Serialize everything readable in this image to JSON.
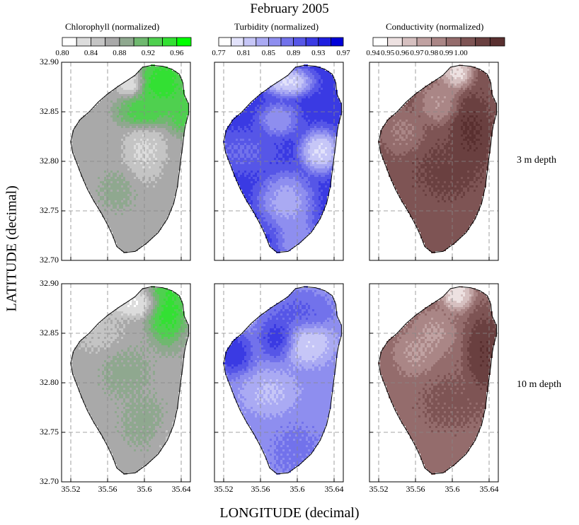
{
  "chart_data": {
    "type": "heatmap",
    "title": "February 2005",
    "xlabel": "LONGITUDE (decimal)",
    "ylabel": "LATITUDE (decimal)",
    "xlim": [
      35.51,
      35.65
    ],
    "ylim": [
      32.7,
      32.9
    ],
    "x_ticks": [
      "35.52",
      "35.56",
      "35.6",
      "35.64"
    ],
    "y_ticks": [
      "32.90",
      "32.85",
      "32.80",
      "32.75",
      "32.70"
    ],
    "grid": true,
    "rows": [
      {
        "label": "3 m depth"
      },
      {
        "label": "10 m depth"
      }
    ],
    "columns": [
      {
        "variable": "Chlorophyll (normalized)",
        "colorbar_ticks": [
          "0.80",
          "0.84",
          "0.88",
          "0.92",
          "0.96"
        ],
        "colors": [
          "#ffffff",
          "#dcdcdc",
          "#c4c4c4",
          "#a9a9a9",
          "#8fa88f",
          "#6fb86f",
          "#4fd04f",
          "#33e033",
          "#00ff00"
        ]
      },
      {
        "variable": "Turbidity (normalized)",
        "colorbar_ticks": [
          "0.77",
          "0.81",
          "0.85",
          "0.89",
          "0.93",
          "0.97"
        ],
        "colors": [
          "#ffffff",
          "#e2e2fb",
          "#c6c6f7",
          "#aaaaf3",
          "#8e8eef",
          "#7272eb",
          "#5656e7",
          "#3a3ae3",
          "#1e1edf",
          "#0000d8"
        ]
      },
      {
        "variable": "Conductivity (normalized)",
        "colorbar_ticks": [
          "0.94",
          "0.95",
          "0.96",
          "0.97",
          "0.98",
          "0.99",
          "1.00"
        ],
        "colors": [
          "#ffffff",
          "#ede1e1",
          "#d6c0c0",
          "#c0a2a2",
          "#aa8686",
          "#946c6c",
          "#7e5454",
          "#6a4040",
          "#5a3030"
        ]
      }
    ],
    "lake_outline_lonlat": [
      [
        35.59,
        32.887
      ],
      [
        35.598,
        32.895
      ],
      [
        35.608,
        32.897
      ],
      [
        35.62,
        32.896
      ],
      [
        35.63,
        32.893
      ],
      [
        35.638,
        32.888
      ],
      [
        35.642,
        32.879
      ],
      [
        35.643,
        32.868
      ],
      [
        35.648,
        32.858
      ],
      [
        35.648,
        32.848
      ],
      [
        35.645,
        32.838
      ],
      [
        35.643,
        32.828
      ],
      [
        35.642,
        32.818
      ],
      [
        35.64,
        32.805
      ],
      [
        35.638,
        32.79
      ],
      [
        35.636,
        32.775
      ],
      [
        35.632,
        32.758
      ],
      [
        35.625,
        32.742
      ],
      [
        35.615,
        32.728
      ],
      [
        35.602,
        32.717
      ],
      [
        35.59,
        32.709
      ],
      [
        35.578,
        32.708
      ],
      [
        35.57,
        32.714
      ],
      [
        35.566,
        32.724
      ],
      [
        35.56,
        32.736
      ],
      [
        35.553,
        32.748
      ],
      [
        35.545,
        32.76
      ],
      [
        35.538,
        32.772
      ],
      [
        35.532,
        32.785
      ],
      [
        35.527,
        32.797
      ],
      [
        35.522,
        32.809
      ],
      [
        35.52,
        32.82
      ],
      [
        35.523,
        32.832
      ],
      [
        35.53,
        32.842
      ],
      [
        35.54,
        32.85
      ],
      [
        35.55,
        32.86
      ],
      [
        35.56,
        32.868
      ],
      [
        35.572,
        32.876
      ],
      [
        35.582,
        32.882
      ]
    ],
    "fields": [
      [
        {
          "base": 3,
          "blobs": [
            [
              35.62,
              32.88,
              0.02,
              0.02,
              8
            ],
            [
              35.6,
              32.85,
              0.02,
              0.012,
              7
            ],
            [
              35.64,
              32.85,
              0.01,
              0.015,
              7
            ],
            [
              35.585,
              32.88,
              0.01,
              0.01,
              0
            ],
            [
              35.6,
              32.81,
              0.015,
              0.02,
              1
            ],
            [
              35.57,
              32.77,
              0.015,
              0.015,
              4
            ]
          ]
        },
        {
          "base": 7,
          "blobs": [
            [
              35.59,
              32.88,
              0.018,
              0.01,
              0
            ],
            [
              35.58,
              32.842,
              0.015,
              0.012,
              3
            ],
            [
              35.625,
              32.81,
              0.015,
              0.015,
              0
            ],
            [
              35.588,
              32.76,
              0.02,
              0.02,
              2
            ],
            [
              35.54,
              32.81,
              0.025,
              0.015,
              5
            ],
            [
              35.6,
              32.72,
              0.015,
              0.02,
              3
            ]
          ]
        },
        {
          "base": 6,
          "blobs": [
            [
              35.605,
              32.89,
              0.012,
              0.012,
              0
            ],
            [
              35.585,
              32.86,
              0.015,
              0.015,
              3
            ],
            [
              35.545,
              32.83,
              0.015,
              0.015,
              4
            ],
            [
              35.595,
              32.79,
              0.025,
              0.02,
              7
            ],
            [
              35.62,
              32.83,
              0.015,
              0.025,
              8
            ]
          ]
        }
      ],
      [
        {
          "base": 3,
          "blobs": [
            [
              35.625,
              32.875,
              0.015,
              0.025,
              8
            ],
            [
              35.59,
              32.88,
              0.02,
              0.01,
              0
            ],
            [
              35.55,
              32.85,
              0.02,
              0.015,
              2
            ],
            [
              35.58,
              32.81,
              0.02,
              0.02,
              4
            ],
            [
              35.6,
              32.76,
              0.02,
              0.02,
              4
            ],
            [
              35.64,
              32.74,
              0.02,
              0.02,
              2
            ]
          ]
        },
        {
          "base": 4,
          "blobs": [
            [
              35.6,
              32.87,
              0.025,
              0.015,
              6
            ],
            [
              35.53,
              32.83,
              0.015,
              0.015,
              8
            ],
            [
              35.58,
              32.845,
              0.015,
              0.015,
              8
            ],
            [
              35.61,
              32.84,
              0.02,
              0.015,
              1
            ],
            [
              35.57,
              32.79,
              0.02,
              0.015,
              2
            ],
            [
              35.6,
              32.73,
              0.02,
              0.02,
              5
            ]
          ]
        },
        {
          "base": 5,
          "blobs": [
            [
              35.605,
              32.89,
              0.012,
              0.012,
              0
            ],
            [
              35.58,
              32.85,
              0.015,
              0.015,
              3
            ],
            [
              35.56,
              32.83,
              0.015,
              0.015,
              3
            ],
            [
              35.6,
              32.78,
              0.025,
              0.02,
              6
            ],
            [
              35.635,
              32.83,
              0.015,
              0.03,
              8
            ]
          ]
        }
      ]
    ],
    "row_labels": [
      "3 m depth",
      "10 m depth"
    ]
  }
}
